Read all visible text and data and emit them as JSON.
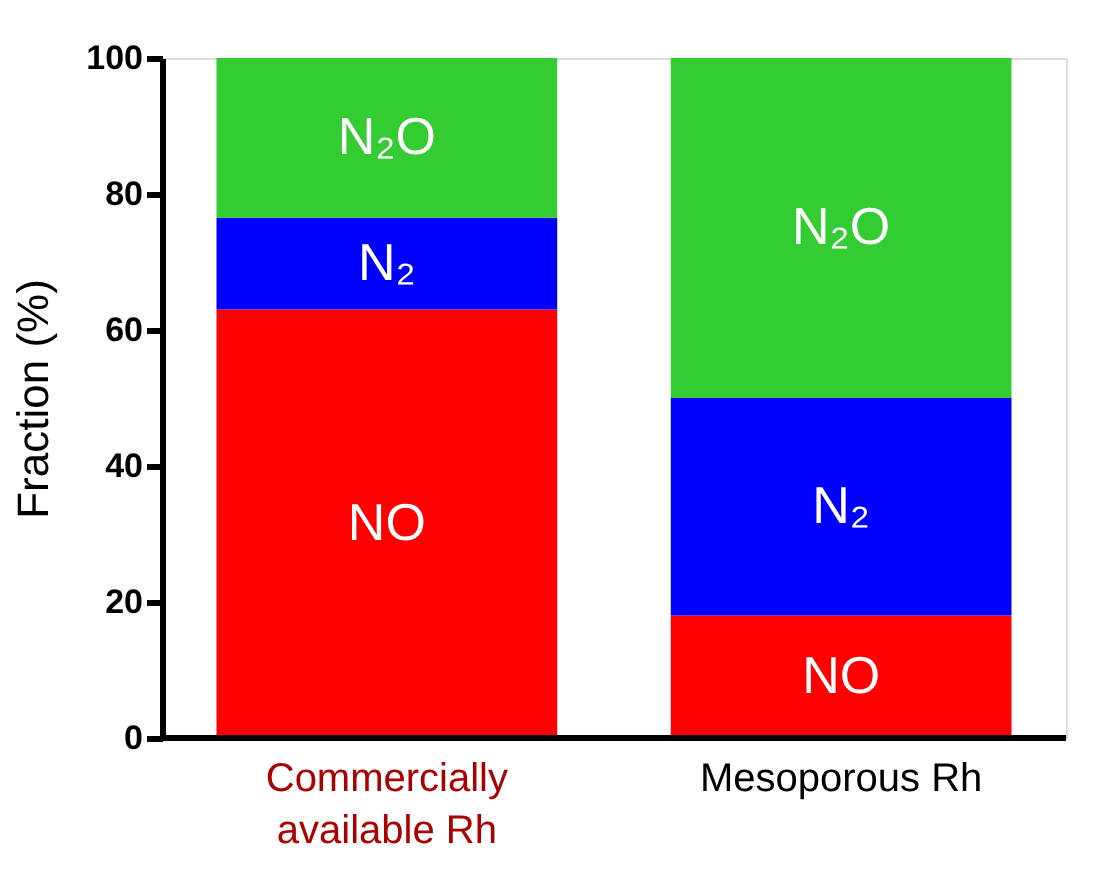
{
  "chart_data": {
    "type": "bar",
    "stacked": true,
    "ylabel": "Fraction (%)",
    "categories": [
      "Commercially available Rh",
      "Mesoporous Rh"
    ],
    "series": [
      {
        "name": "NO",
        "color": "#ff0000",
        "values": [
          63,
          18
        ]
      },
      {
        "name": "N₂",
        "color": "#0000ff",
        "values": [
          13.5,
          32
        ]
      },
      {
        "name": "N₂O",
        "color": "#33cc33",
        "values": [
          23.5,
          50
        ]
      }
    ],
    "ylim": [
      0,
      100
    ],
    "yticks": [
      0,
      20,
      40,
      60,
      80,
      100
    ],
    "grid": false,
    "legend": false
  }
}
